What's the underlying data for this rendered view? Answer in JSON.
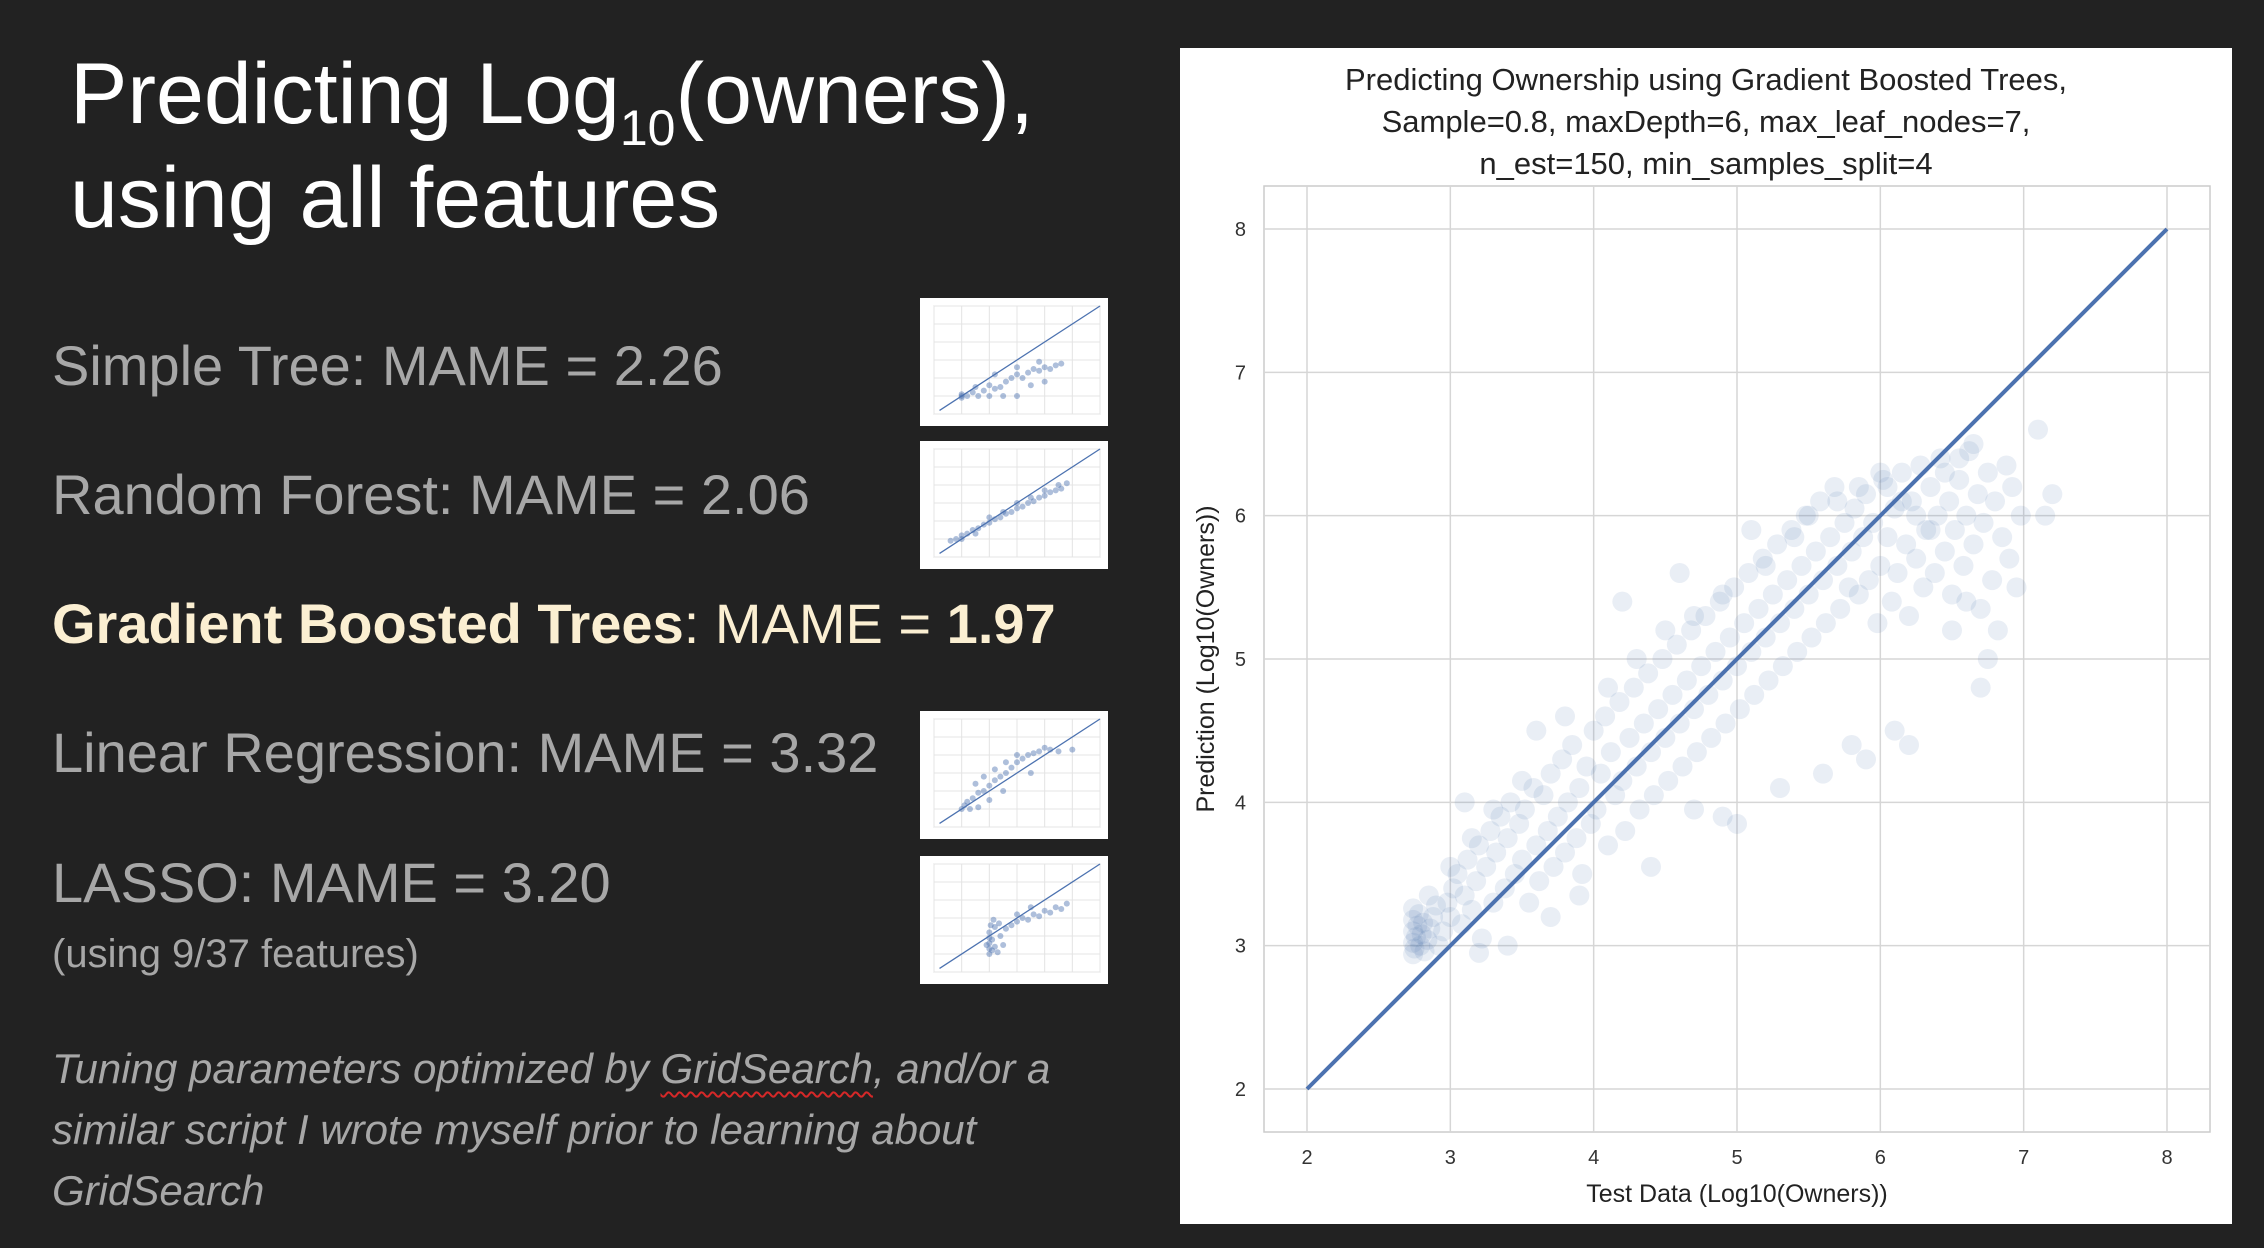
{
  "slide": {
    "title_line1_part1": "Predicting Log",
    "title_subscript": "10",
    "title_line1_part2": "(owners),",
    "title_line2": "using all features",
    "models": [
      {
        "label": "Simple Tree:  MAME = 2.26"
      },
      {
        "label": "Random Forest:  MAME = 2.06"
      },
      {
        "label_bold": "Gradient Boosted Trees",
        "label_mid": ": MAME = ",
        "value_bold": "1.97"
      },
      {
        "label": "Linear Regression:  MAME = 3.32"
      },
      {
        "label": "LASSO:  MAME = 3.20"
      }
    ],
    "lasso_note": "(using 9/37 features)",
    "footnote_pre": "Tuning parameters optimized by ",
    "footnote_link": "GridSearch",
    "footnote_post": ", and/or a similar script I wrote myself prior to learning about GridSearch",
    "colors": {
      "background": "#222222",
      "title": "#ffffff",
      "text": "#a7a7a7",
      "highlight": "#fbefd2",
      "points": "#4c72b0",
      "grid": "#cccccc"
    }
  },
  "chart_data": {
    "type": "scatter",
    "title_lines": [
      "Predicting Ownership using Gradient Boosted Trees,",
      "Sample=0.8, maxDepth=6, max_leaf_nodes=7,",
      "n_est=150, min_samples_split=4"
    ],
    "xlabel": "Test Data (Log10(Owners))",
    "ylabel": "Prediction (Log10(Owners))",
    "xlim": [
      1.7,
      8.3
    ],
    "ylim": [
      1.7,
      8.3
    ],
    "xticks": [
      "2",
      "3",
      "4",
      "5",
      "6",
      "7",
      "8"
    ],
    "yticks": [
      "2",
      "3",
      "4",
      "5",
      "6",
      "7",
      "8"
    ],
    "grid": true,
    "reference_line": {
      "x": [
        2,
        8
      ],
      "y": [
        2,
        8
      ]
    },
    "point_color": "#4c72b0",
    "point_alpha": 0.12,
    "points": [
      [
        2.74,
        2.94
      ],
      [
        2.74,
        3.02
      ],
      [
        2.74,
        3.1
      ],
      [
        2.74,
        3.18
      ],
      [
        2.74,
        3.26
      ],
      [
        2.75,
        2.98
      ],
      [
        2.76,
        3.06
      ],
      [
        2.77,
        3.14
      ],
      [
        2.78,
        3.22
      ],
      [
        2.79,
        3.0
      ],
      [
        2.8,
        3.08
      ],
      [
        2.81,
        3.16
      ],
      [
        2.82,
        2.96
      ],
      [
        2.84,
        3.04
      ],
      [
        2.86,
        3.12
      ],
      [
        2.88,
        3.2
      ],
      [
        2.9,
        3.28
      ],
      [
        2.92,
        3.0
      ],
      [
        2.95,
        3.1
      ],
      [
        2.98,
        3.3
      ],
      [
        3.0,
        3.2
      ],
      [
        3.02,
        3.4
      ],
      [
        3.05,
        3.5
      ],
      [
        3.08,
        3.15
      ],
      [
        3.1,
        3.35
      ],
      [
        3.12,
        3.6
      ],
      [
        3.15,
        3.25
      ],
      [
        3.18,
        3.45
      ],
      [
        3.2,
        3.7
      ],
      [
        3.22,
        3.05
      ],
      [
        3.25,
        3.55
      ],
      [
        3.28,
        3.8
      ],
      [
        3.3,
        3.3
      ],
      [
        3.32,
        3.65
      ],
      [
        3.35,
        3.9
      ],
      [
        3.38,
        3.4
      ],
      [
        3.4,
        3.75
      ],
      [
        3.42,
        4.0
      ],
      [
        3.45,
        3.5
      ],
      [
        3.48,
        3.85
      ],
      [
        3.5,
        3.6
      ],
      [
        3.52,
        3.95
      ],
      [
        3.55,
        3.3
      ],
      [
        3.58,
        4.1
      ],
      [
        3.6,
        3.7
      ],
      [
        3.62,
        3.45
      ],
      [
        3.65,
        4.05
      ],
      [
        3.68,
        3.8
      ],
      [
        3.7,
        4.2
      ],
      [
        3.72,
        3.55
      ],
      [
        3.75,
        3.9
      ],
      [
        3.78,
        4.3
      ],
      [
        3.8,
        3.65
      ],
      [
        3.82,
        4.0
      ],
      [
        3.85,
        4.4
      ],
      [
        3.88,
        3.75
      ],
      [
        3.9,
        4.1
      ],
      [
        3.92,
        3.5
      ],
      [
        3.95,
        4.25
      ],
      [
        3.98,
        3.85
      ],
      [
        4.0,
        4.5
      ],
      [
        4.02,
        3.95
      ],
      [
        4.05,
        4.2
      ],
      [
        4.08,
        4.6
      ],
      [
        4.1,
        3.7
      ],
      [
        4.12,
        4.35
      ],
      [
        4.15,
        4.05
      ],
      [
        4.18,
        4.7
      ],
      [
        4.2,
        4.15
      ],
      [
        4.22,
        3.8
      ],
      [
        4.25,
        4.45
      ],
      [
        4.28,
        4.8
      ],
      [
        4.3,
        4.25
      ],
      [
        4.32,
        3.95
      ],
      [
        4.35,
        4.55
      ],
      [
        4.38,
        4.9
      ],
      [
        4.4,
        4.35
      ],
      [
        4.42,
        4.05
      ],
      [
        4.45,
        4.65
      ],
      [
        4.48,
        5.0
      ],
      [
        4.5,
        4.45
      ],
      [
        4.52,
        4.15
      ],
      [
        4.55,
        4.75
      ],
      [
        4.58,
        5.1
      ],
      [
        4.6,
        4.55
      ],
      [
        4.62,
        4.25
      ],
      [
        4.65,
        4.85
      ],
      [
        4.68,
        5.2
      ],
      [
        4.7,
        4.65
      ],
      [
        4.72,
        4.35
      ],
      [
        4.75,
        4.95
      ],
      [
        4.78,
        5.3
      ],
      [
        4.8,
        4.75
      ],
      [
        4.82,
        4.45
      ],
      [
        4.85,
        5.05
      ],
      [
        4.88,
        5.4
      ],
      [
        4.9,
        4.85
      ],
      [
        4.92,
        4.55
      ],
      [
        4.95,
        5.15
      ],
      [
        4.98,
        5.5
      ],
      [
        5.0,
        4.95
      ],
      [
        5.02,
        4.65
      ],
      [
        5.05,
        5.25
      ],
      [
        5.08,
        5.6
      ],
      [
        5.1,
        5.05
      ],
      [
        5.12,
        4.75
      ],
      [
        5.15,
        5.35
      ],
      [
        5.18,
        5.7
      ],
      [
        5.2,
        5.15
      ],
      [
        5.22,
        4.85
      ],
      [
        5.25,
        5.45
      ],
      [
        5.28,
        5.8
      ],
      [
        5.3,
        5.25
      ],
      [
        5.32,
        4.95
      ],
      [
        5.35,
        5.55
      ],
      [
        5.38,
        5.9
      ],
      [
        5.4,
        5.35
      ],
      [
        5.42,
        5.05
      ],
      [
        5.45,
        5.65
      ],
      [
        5.48,
        6.0
      ],
      [
        5.5,
        5.45
      ],
      [
        5.52,
        5.15
      ],
      [
        5.55,
        5.75
      ],
      [
        5.58,
        6.1
      ],
      [
        5.6,
        5.55
      ],
      [
        5.62,
        5.25
      ],
      [
        5.65,
        5.85
      ],
      [
        5.68,
        6.2
      ],
      [
        5.7,
        5.65
      ],
      [
        5.72,
        5.35
      ],
      [
        5.75,
        5.95
      ],
      [
        5.78,
        5.5
      ],
      [
        5.8,
        5.75
      ],
      [
        5.82,
        6.05
      ],
      [
        5.85,
        5.45
      ],
      [
        5.88,
        5.85
      ],
      [
        5.9,
        6.15
      ],
      [
        5.92,
        5.55
      ],
      [
        5.95,
        5.95
      ],
      [
        5.98,
        5.25
      ],
      [
        6.0,
        5.65
      ],
      [
        6.02,
        6.25
      ],
      [
        6.05,
        5.85
      ],
      [
        6.08,
        5.4
      ],
      [
        6.1,
        6.05
      ],
      [
        6.12,
        5.6
      ],
      [
        6.15,
        6.3
      ],
      [
        6.18,
        5.8
      ],
      [
        6.2,
        5.3
      ],
      [
        6.22,
        6.1
      ],
      [
        6.25,
        5.7
      ],
      [
        6.28,
        6.35
      ],
      [
        6.3,
        5.5
      ],
      [
        6.32,
        5.9
      ],
      [
        6.35,
        6.2
      ],
      [
        6.38,
        5.6
      ],
      [
        6.4,
        6.0
      ],
      [
        6.42,
        6.4
      ],
      [
        6.45,
        5.75
      ],
      [
        6.48,
        6.1
      ],
      [
        6.5,
        5.45
      ],
      [
        6.52,
        5.9
      ],
      [
        6.55,
        6.25
      ],
      [
        6.58,
        5.65
      ],
      [
        6.6,
        6.0
      ],
      [
        6.62,
        6.45
      ],
      [
        6.65,
        5.8
      ],
      [
        6.68,
        6.15
      ],
      [
        6.7,
        5.35
      ],
      [
        6.72,
        5.95
      ],
      [
        6.75,
        6.3
      ],
      [
        6.78,
        5.55
      ],
      [
        6.8,
        6.1
      ],
      [
        6.82,
        5.2
      ],
      [
        6.85,
        5.85
      ],
      [
        6.88,
        6.35
      ],
      [
        6.9,
        5.7
      ],
      [
        6.92,
        6.2
      ],
      [
        6.95,
        5.5
      ],
      [
        6.98,
        6.0
      ],
      [
        7.1,
        6.6
      ],
      [
        7.15,
        6.0
      ],
      [
        7.2,
        6.15
      ],
      [
        5.6,
        4.2
      ],
      [
        5.8,
        4.4
      ],
      [
        5.9,
        4.3
      ],
      [
        6.1,
        4.5
      ],
      [
        6.2,
        4.4
      ],
      [
        6.7,
        4.8
      ],
      [
        6.75,
        5.0
      ],
      [
        3.6,
        4.5
      ],
      [
        4.2,
        5.4
      ],
      [
        4.6,
        5.6
      ],
      [
        5.1,
        5.9
      ],
      [
        3.1,
        4.0
      ],
      [
        5.3,
        4.1
      ],
      [
        4.9,
        3.9
      ],
      [
        5.0,
        3.85
      ],
      [
        4.7,
        3.95
      ],
      [
        3.9,
        3.35
      ],
      [
        4.4,
        3.55
      ],
      [
        3.7,
        3.2
      ],
      [
        3.4,
        3.0
      ],
      [
        3.2,
        2.95
      ],
      [
        2.85,
        3.35
      ],
      [
        3.0,
        3.55
      ],
      [
        3.15,
        3.75
      ],
      [
        3.3,
        3.95
      ],
      [
        3.5,
        4.15
      ],
      [
        3.8,
        4.6
      ],
      [
        4.1,
        4.8
      ],
      [
        4.3,
        5.0
      ],
      [
        4.5,
        5.2
      ],
      [
        4.7,
        5.3
      ],
      [
        4.9,
        5.45
      ],
      [
        5.2,
        5.65
      ],
      [
        5.4,
        5.85
      ],
      [
        5.5,
        6.0
      ],
      [
        5.7,
        6.1
      ],
      [
        5.85,
        6.2
      ],
      [
        6.0,
        6.3
      ],
      [
        6.05,
        6.2
      ],
      [
        6.15,
        6.1
      ],
      [
        6.25,
        6.0
      ],
      [
        6.35,
        5.9
      ],
      [
        6.45,
        6.3
      ],
      [
        6.55,
        6.4
      ],
      [
        6.65,
        6.5
      ],
      [
        6.6,
        5.4
      ],
      [
        6.5,
        5.2
      ]
    ]
  },
  "thumbnails": [
    {
      "model": "simple_tree",
      "points": [
        [
          3.0,
          2.9
        ],
        [
          3.0,
          3.0
        ],
        [
          3.0,
          3.1
        ],
        [
          3.2,
          3.0
        ],
        [
          3.4,
          3.2
        ],
        [
          3.6,
          3.0
        ],
        [
          3.8,
          3.3
        ],
        [
          4.0,
          3.6
        ],
        [
          4.2,
          3.4
        ],
        [
          4.4,
          3.5
        ],
        [
          4.6,
          3.8
        ],
        [
          4.8,
          4.0
        ],
        [
          5.0,
          4.2
        ],
        [
          5.2,
          4.0
        ],
        [
          5.4,
          4.3
        ],
        [
          5.6,
          4.5
        ],
        [
          5.8,
          4.4
        ],
        [
          6.0,
          4.6
        ],
        [
          6.2,
          4.5
        ],
        [
          6.4,
          4.7
        ],
        [
          6.6,
          4.8
        ],
        [
          4.0,
          3.0
        ],
        [
          4.5,
          3.0
        ],
        [
          5.0,
          3.0
        ],
        [
          5.5,
          3.6
        ],
        [
          6.0,
          3.8
        ],
        [
          3.5,
          3.5
        ],
        [
          4.2,
          4.2
        ],
        [
          5.0,
          4.6
        ],
        [
          5.8,
          4.9
        ]
      ]
    },
    {
      "model": "random_forest",
      "points": [
        [
          2.6,
          2.9
        ],
        [
          2.8,
          3.0
        ],
        [
          3.0,
          3.2
        ],
        [
          3.2,
          3.3
        ],
        [
          3.4,
          3.5
        ],
        [
          3.6,
          3.6
        ],
        [
          3.8,
          3.8
        ],
        [
          4.0,
          3.9
        ],
        [
          4.2,
          4.1
        ],
        [
          4.4,
          4.2
        ],
        [
          4.6,
          4.4
        ],
        [
          4.8,
          4.5
        ],
        [
          5.0,
          4.7
        ],
        [
          5.2,
          4.8
        ],
        [
          5.4,
          5.0
        ],
        [
          5.6,
          5.1
        ],
        [
          5.8,
          5.3
        ],
        [
          6.0,
          5.4
        ],
        [
          6.2,
          5.6
        ],
        [
          6.4,
          5.7
        ],
        [
          6.6,
          5.8
        ],
        [
          3.5,
          3.3
        ],
        [
          4.5,
          4.5
        ],
        [
          5.5,
          5.3
        ],
        [
          6.5,
          6.0
        ],
        [
          3.0,
          3.0
        ],
        [
          4.0,
          4.2
        ],
        [
          5.0,
          5.0
        ],
        [
          6.0,
          5.7
        ],
        [
          6.8,
          6.1
        ]
      ]
    },
    {
      "model": "linear_regression",
      "points": [
        [
          3.0,
          3.0
        ],
        [
          3.1,
          3.2
        ],
        [
          3.2,
          3.4
        ],
        [
          3.4,
          3.6
        ],
        [
          3.6,
          3.9
        ],
        [
          3.8,
          4.0
        ],
        [
          4.0,
          4.3
        ],
        [
          4.2,
          4.6
        ],
        [
          4.4,
          4.8
        ],
        [
          4.6,
          5.0
        ],
        [
          4.8,
          5.3
        ],
        [
          5.0,
          5.6
        ],
        [
          5.2,
          5.8
        ],
        [
          5.4,
          6.0
        ],
        [
          5.6,
          6.1
        ],
        [
          5.8,
          6.2
        ],
        [
          6.0,
          6.4
        ],
        [
          6.2,
          6.3
        ],
        [
          3.5,
          4.4
        ],
        [
          3.8,
          4.8
        ],
        [
          4.2,
          5.2
        ],
        [
          4.6,
          5.6
        ],
        [
          5.0,
          6.0
        ],
        [
          3.3,
          3.0
        ],
        [
          3.6,
          3.1
        ],
        [
          4.0,
          3.5
        ],
        [
          4.5,
          4.0
        ],
        [
          5.5,
          5.0
        ],
        [
          6.5,
          6.2
        ],
        [
          7.0,
          6.3
        ]
      ]
    },
    {
      "model": "lasso",
      "points": [
        [
          4.0,
          3.0
        ],
        [
          4.0,
          3.3
        ],
        [
          4.0,
          3.6
        ],
        [
          4.0,
          3.9
        ],
        [
          4.0,
          4.2
        ],
        [
          4.1,
          3.2
        ],
        [
          4.1,
          3.8
        ],
        [
          4.2,
          4.5
        ],
        [
          4.3,
          3.1
        ],
        [
          4.4,
          4.0
        ],
        [
          4.5,
          3.5
        ],
        [
          4.6,
          4.4
        ],
        [
          4.8,
          4.6
        ],
        [
          5.0,
          4.8
        ],
        [
          5.2,
          5.0
        ],
        [
          5.4,
          4.9
        ],
        [
          5.6,
          5.2
        ],
        [
          5.8,
          5.1
        ],
        [
          6.0,
          5.4
        ],
        [
          6.2,
          5.3
        ],
        [
          6.4,
          5.6
        ],
        [
          6.6,
          5.5
        ],
        [
          6.8,
          5.8
        ],
        [
          4.05,
          4.6
        ],
        [
          4.15,
          4.9
        ],
        [
          4.2,
          3.4
        ],
        [
          4.35,
          4.7
        ],
        [
          3.9,
          3.5
        ],
        [
          5.0,
          5.2
        ],
        [
          5.5,
          5.6
        ]
      ]
    }
  ]
}
